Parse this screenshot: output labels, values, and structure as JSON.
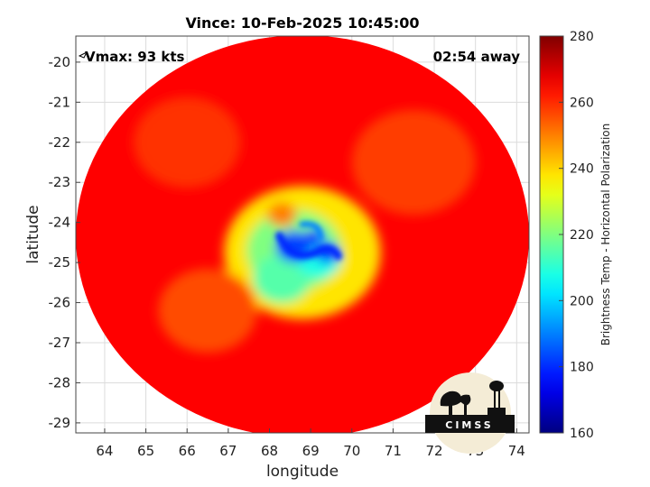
{
  "chart_data": {
    "type": "heatmap",
    "title": "Vince: 10-Feb-2025 10:45:00",
    "xlabel": "longitude",
    "ylabel": "latitude",
    "xlim": [
      63.3,
      74.3
    ],
    "ylim": [
      -29.25,
      -19.35
    ],
    "x_ticks": [
      64,
      65,
      66,
      67,
      68,
      69,
      70,
      71,
      72,
      73,
      74
    ],
    "y_ticks": [
      -20,
      -21,
      -22,
      -23,
      -24,
      -25,
      -26,
      -27,
      -28,
      -29
    ],
    "grid": true,
    "colorbar": {
      "label": "Brightness Temp - Horizontal Polarization",
      "range": [
        160,
        280
      ],
      "ticks": [
        160,
        180,
        200,
        220,
        240,
        260,
        280
      ],
      "colormap": "jet"
    },
    "annotations": {
      "vmax": "Vmax: 93 kts",
      "time_away": "02:54 away"
    },
    "storm_center": {
      "lon": 68.9,
      "lat": -24.5
    },
    "swath_extent": {
      "lon": [
        63.3,
        74.3
      ],
      "lat": [
        -29.25,
        -19.35
      ]
    },
    "background_tb": 265,
    "features": [
      {
        "lon": 68.8,
        "lat": -24.75,
        "radius_deg": 1.9,
        "tb": 238
      },
      {
        "lon": 68.6,
        "lat": -24.7,
        "radius_deg": 1.15,
        "tb": 220
      },
      {
        "lon": 68.3,
        "lat": -25.4,
        "radius_deg": 0.7,
        "tb": 215
      },
      {
        "lon": 69.2,
        "lat": -24.9,
        "radius_deg": 0.55,
        "tb": 208
      },
      {
        "lon": 68.6,
        "lat": -24.6,
        "radius_deg": 0.45,
        "tb": 183
      },
      {
        "lon": 69.4,
        "lat": -24.75,
        "radius_deg": 0.3,
        "tb": 182
      },
      {
        "lon": 69.1,
        "lat": -24.35,
        "radius_deg": 0.22,
        "tb": 178
      },
      {
        "lon": 68.3,
        "lat": -23.8,
        "radius_deg": 0.35,
        "tb": 250
      },
      {
        "lon": 66.5,
        "lat": -26.2,
        "radius_deg": 1.2,
        "tb": 256
      },
      {
        "lon": 71.5,
        "lat": -22.5,
        "radius_deg": 1.5,
        "tb": 258
      },
      {
        "lon": 66.0,
        "lat": -22.0,
        "radius_deg": 1.3,
        "tb": 259
      }
    ]
  },
  "logo": {
    "text": "CIMSS",
    "sky_color": "#f4ecd6",
    "dark_color": "#111111"
  }
}
